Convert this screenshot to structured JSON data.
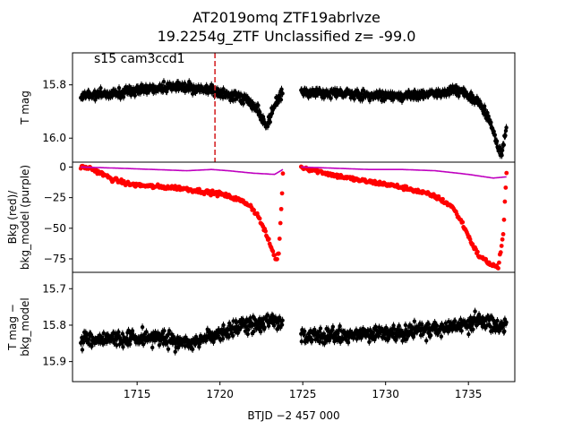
{
  "chart_data": {
    "type": "scatter",
    "title_line1": "AT2019omq  ZTF19abrlvze",
    "title_line2": "19.2254g_ZTF Unclassified z= -99.0",
    "xlabel": "BTJD −2 457 000",
    "xlim": [
      1711.1,
      1737.8
    ],
    "xticks": [
      "1715",
      "1720",
      "1725",
      "1730",
      "1735"
    ],
    "xtick_values": [
      1715,
      1720,
      1725,
      1730,
      1735
    ],
    "segments": [
      [
        1711.6,
        1723.8
      ],
      [
        1724.9,
        1737.3
      ]
    ],
    "panels": [
      {
        "name": "tmag",
        "ylabel": [
          "T mag"
        ],
        "ylim": [
          16.09,
          15.68
        ],
        "yticks": [
          "15.8",
          "16.0"
        ],
        "ytick_values": [
          15.8,
          16.0
        ],
        "annotation": "s15 cam3ccd1",
        "vline_x": 1719.7,
        "vline_color": "#d62728",
        "point_color": "#000000"
      },
      {
        "name": "bkg",
        "ylabel": [
          "Bkg (red)/",
          "bkg_model (purple)"
        ],
        "ylim": [
          -86,
          4
        ],
        "yticks": [
          "0",
          "−25",
          "−50",
          "−75"
        ],
        "ytick_values": [
          0,
          -25,
          -50,
          -75
        ],
        "bkg_color": "#ff0000",
        "model_color": "#bf00bf"
      },
      {
        "name": "tmag_bkg",
        "ylabel": [
          "T mag −",
          "bkg_model"
        ],
        "ylim": [
          15.955,
          15.655
        ],
        "yticks": [
          "15.7",
          "15.8",
          "15.9"
        ],
        "ytick_values": [
          15.7,
          15.8,
          15.9
        ],
        "point_color": "#000000"
      }
    ],
    "tmag_trend": [
      [
        1711.6,
        15.84
      ],
      [
        1714,
        15.83
      ],
      [
        1716,
        15.81
      ],
      [
        1718,
        15.81
      ],
      [
        1719.5,
        15.82
      ],
      [
        1720.5,
        15.84
      ],
      [
        1721.5,
        15.85
      ],
      [
        1722.3,
        15.89
      ],
      [
        1722.8,
        15.96
      ],
      [
        1723.3,
        15.88
      ],
      [
        1723.8,
        15.82
      ],
      [
        1724.9,
        15.83
      ],
      [
        1727,
        15.83
      ],
      [
        1729,
        15.84
      ],
      [
        1731,
        15.84
      ],
      [
        1733,
        15.83
      ],
      [
        1734.5,
        15.82
      ],
      [
        1735.5,
        15.86
      ],
      [
        1736.2,
        15.92
      ],
      [
        1736.7,
        16.02
      ],
      [
        1737.0,
        16.06
      ],
      [
        1737.3,
        15.96
      ]
    ],
    "bkg_trend": [
      [
        1711.6,
        0
      ],
      [
        1712.2,
        -1
      ],
      [
        1712.8,
        -5
      ],
      [
        1713.5,
        -10
      ],
      [
        1714.5,
        -14
      ],
      [
        1716,
        -16
      ],
      [
        1717.5,
        -17
      ],
      [
        1719,
        -20
      ],
      [
        1720,
        -22
      ],
      [
        1721,
        -26
      ],
      [
        1721.8,
        -31
      ],
      [
        1722.3,
        -40
      ],
      [
        1722.7,
        -52
      ],
      [
        1723.1,
        -66
      ],
      [
        1723.4,
        -76
      ],
      [
        1723.55,
        -70
      ],
      [
        1723.7,
        -35
      ],
      [
        1723.8,
        -5
      ],
      [
        1724.9,
        0
      ],
      [
        1725.8,
        -3
      ],
      [
        1727,
        -7
      ],
      [
        1728.5,
        -11
      ],
      [
        1730,
        -14
      ],
      [
        1731.5,
        -18
      ],
      [
        1733,
        -24
      ],
      [
        1734,
        -32
      ],
      [
        1734.6,
        -45
      ],
      [
        1735.2,
        -62
      ],
      [
        1735.6,
        -72
      ],
      [
        1736,
        -76
      ],
      [
        1736.4,
        -80
      ],
      [
        1736.8,
        -82
      ],
      [
        1737.1,
        -55
      ],
      [
        1737.3,
        -5
      ]
    ],
    "model_trend": [
      [
        1711.6,
        0
      ],
      [
        1714,
        -1
      ],
      [
        1716,
        -2
      ],
      [
        1718,
        -3
      ],
      [
        1719.5,
        -2
      ],
      [
        1720.5,
        -3
      ],
      [
        1722,
        -5
      ],
      [
        1723.3,
        -6
      ],
      [
        1723.8,
        -2
      ],
      [
        1724.9,
        0
      ],
      [
        1727,
        -1
      ],
      [
        1729,
        -2
      ],
      [
        1731,
        -2
      ],
      [
        1733,
        -3
      ],
      [
        1735,
        -6
      ],
      [
        1736.5,
        -9
      ],
      [
        1737.3,
        -8
      ]
    ],
    "resid_trend": [
      [
        1711.6,
        15.84
      ],
      [
        1714,
        15.84
      ],
      [
        1716,
        15.83
      ],
      [
        1717.5,
        15.85
      ],
      [
        1719,
        15.84
      ],
      [
        1720,
        15.82
      ],
      [
        1721,
        15.81
      ],
      [
        1722,
        15.8
      ],
      [
        1723,
        15.79
      ],
      [
        1723.8,
        15.8
      ],
      [
        1724.9,
        15.83
      ],
      [
        1727,
        15.83
      ],
      [
        1729,
        15.82
      ],
      [
        1731,
        15.82
      ],
      [
        1733,
        15.81
      ],
      [
        1734.5,
        15.8
      ],
      [
        1735.5,
        15.79
      ],
      [
        1736.2,
        15.79
      ],
      [
        1736.8,
        15.81
      ],
      [
        1737.3,
        15.8
      ]
    ]
  }
}
